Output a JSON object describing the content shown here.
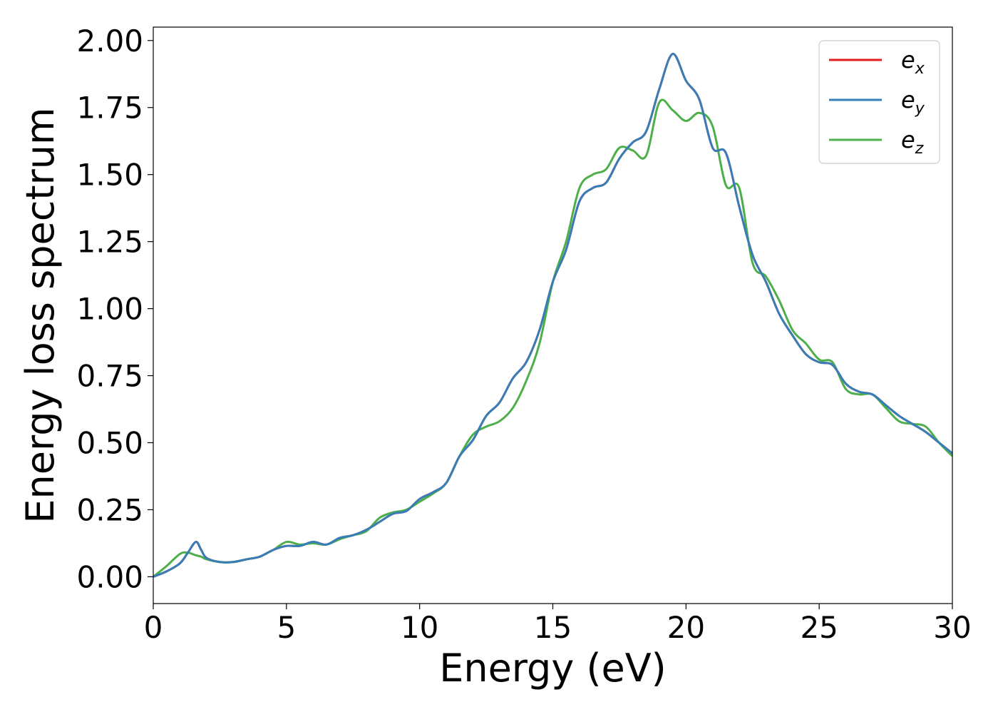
{
  "chart_data": {
    "type": "line",
    "title": "",
    "xlabel": "Energy (eV)",
    "ylabel": "Energy loss spectrum",
    "xlim": [
      0,
      30
    ],
    "ylim": [
      -0.1,
      2.05
    ],
    "x_ticks": [
      0,
      5,
      10,
      15,
      20,
      25,
      30
    ],
    "x_tick_labels": [
      "0",
      "5",
      "10",
      "15",
      "20",
      "25",
      "30"
    ],
    "y_ticks": [
      0,
      0.25,
      0.5,
      0.75,
      1.0,
      1.25,
      1.5,
      1.75,
      2.0
    ],
    "y_tick_labels": [
      "0.00",
      "0.25",
      "0.50",
      "0.75",
      "1.00",
      "1.25",
      "1.50",
      "1.75",
      "2.00"
    ],
    "grid": false,
    "legend_position": "top-right",
    "series": [
      {
        "name": "e",
        "subscript": "x",
        "color": "#e41a1c",
        "x": [
          0,
          0.5,
          1.0,
          1.3,
          1.6,
          1.8,
          2.0,
          2.5,
          3.0,
          3.5,
          4.0,
          4.5,
          5.0,
          5.5,
          6.0,
          6.5,
          7.0,
          7.5,
          8.0,
          8.5,
          9.0,
          9.5,
          10.0,
          10.5,
          11.0,
          11.5,
          12.0,
          12.5,
          13.0,
          13.5,
          14.0,
          14.5,
          15.0,
          15.5,
          16.0,
          16.5,
          17.0,
          17.5,
          18.0,
          18.5,
          19.0,
          19.5,
          20.0,
          20.5,
          21.0,
          21.5,
          22.0,
          22.5,
          23.0,
          23.5,
          24.0,
          24.5,
          25.0,
          25.5,
          26.0,
          26.5,
          27.0,
          27.5,
          28.0,
          28.5,
          29.0,
          29.5,
          30.0
        ],
        "values": [
          0.0,
          0.02,
          0.05,
          0.09,
          0.13,
          0.1,
          0.07,
          0.055,
          0.055,
          0.065,
          0.075,
          0.1,
          0.115,
          0.115,
          0.13,
          0.12,
          0.145,
          0.155,
          0.175,
          0.205,
          0.235,
          0.245,
          0.29,
          0.315,
          0.35,
          0.45,
          0.51,
          0.6,
          0.65,
          0.74,
          0.8,
          0.92,
          1.1,
          1.22,
          1.4,
          1.45,
          1.47,
          1.56,
          1.62,
          1.66,
          1.82,
          1.95,
          1.85,
          1.78,
          1.6,
          1.58,
          1.38,
          1.2,
          1.1,
          0.98,
          0.9,
          0.83,
          0.8,
          0.79,
          0.72,
          0.69,
          0.68,
          0.64,
          0.6,
          0.57,
          0.54,
          0.5,
          0.46
        ]
      },
      {
        "name": "e",
        "subscript": "y",
        "color": "#377eb8",
        "x": [
          0,
          0.5,
          1.0,
          1.3,
          1.6,
          1.8,
          2.0,
          2.5,
          3.0,
          3.5,
          4.0,
          4.5,
          5.0,
          5.5,
          6.0,
          6.5,
          7.0,
          7.5,
          8.0,
          8.5,
          9.0,
          9.5,
          10.0,
          10.5,
          11.0,
          11.5,
          12.0,
          12.5,
          13.0,
          13.5,
          14.0,
          14.5,
          15.0,
          15.5,
          16.0,
          16.5,
          17.0,
          17.5,
          18.0,
          18.5,
          19.0,
          19.5,
          20.0,
          20.5,
          21.0,
          21.5,
          22.0,
          22.5,
          23.0,
          23.5,
          24.0,
          24.5,
          25.0,
          25.5,
          26.0,
          26.5,
          27.0,
          27.5,
          28.0,
          28.5,
          29.0,
          29.5,
          30.0
        ],
        "values": [
          0.0,
          0.02,
          0.05,
          0.09,
          0.13,
          0.1,
          0.07,
          0.055,
          0.055,
          0.065,
          0.075,
          0.1,
          0.115,
          0.115,
          0.13,
          0.12,
          0.145,
          0.155,
          0.175,
          0.205,
          0.235,
          0.245,
          0.29,
          0.315,
          0.35,
          0.45,
          0.51,
          0.6,
          0.65,
          0.74,
          0.8,
          0.92,
          1.1,
          1.22,
          1.4,
          1.45,
          1.47,
          1.56,
          1.62,
          1.66,
          1.82,
          1.95,
          1.85,
          1.78,
          1.6,
          1.58,
          1.38,
          1.2,
          1.1,
          0.98,
          0.9,
          0.83,
          0.8,
          0.79,
          0.72,
          0.69,
          0.68,
          0.64,
          0.6,
          0.57,
          0.54,
          0.5,
          0.46
        ]
      },
      {
        "name": "e",
        "subscript": "z",
        "color": "#4daf4a",
        "x": [
          0,
          0.5,
          1.0,
          1.3,
          1.6,
          1.8,
          2.0,
          2.5,
          3.0,
          3.5,
          4.0,
          4.5,
          5.0,
          5.5,
          6.0,
          6.5,
          7.0,
          7.5,
          8.0,
          8.5,
          9.0,
          9.5,
          10.0,
          10.5,
          11.0,
          11.5,
          12.0,
          12.5,
          13.0,
          13.5,
          14.0,
          14.5,
          15.0,
          15.5,
          16.0,
          16.5,
          17.0,
          17.5,
          18.0,
          18.5,
          19.0,
          19.5,
          20.0,
          20.5,
          21.0,
          21.5,
          22.0,
          22.5,
          23.0,
          23.5,
          24.0,
          24.5,
          25.0,
          25.5,
          26.0,
          26.5,
          27.0,
          27.5,
          28.0,
          28.5,
          29.0,
          29.5,
          30.0
        ],
        "values": [
          0.0,
          0.04,
          0.085,
          0.09,
          0.08,
          0.075,
          0.065,
          0.055,
          0.055,
          0.065,
          0.075,
          0.1,
          0.13,
          0.12,
          0.125,
          0.12,
          0.14,
          0.155,
          0.17,
          0.22,
          0.24,
          0.25,
          0.28,
          0.31,
          0.35,
          0.45,
          0.53,
          0.56,
          0.58,
          0.63,
          0.73,
          0.87,
          1.1,
          1.25,
          1.45,
          1.5,
          1.52,
          1.6,
          1.59,
          1.57,
          1.77,
          1.74,
          1.7,
          1.73,
          1.68,
          1.46,
          1.45,
          1.17,
          1.12,
          1.03,
          0.92,
          0.87,
          0.81,
          0.8,
          0.7,
          0.68,
          0.68,
          0.63,
          0.58,
          0.57,
          0.56,
          0.5,
          0.45
        ]
      }
    ]
  }
}
